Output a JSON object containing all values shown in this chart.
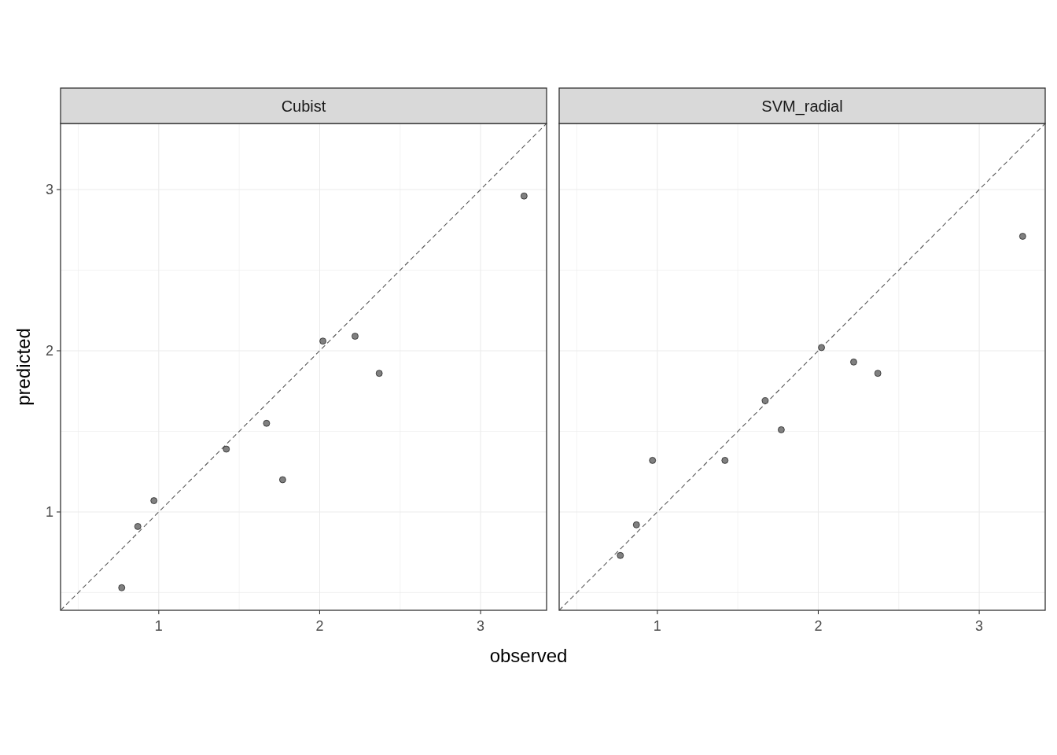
{
  "chart_data": [
    {
      "type": "scatter",
      "title": "Cubist",
      "xlabel": "observed",
      "ylabel": "predicted",
      "xlim": [
        0.39,
        3.41
      ],
      "ylim": [
        0.39,
        3.41
      ],
      "xticks": [
        {
          "value": 0.5,
          "label": null
        },
        1,
        {
          "value": 1.5,
          "label": null
        },
        2,
        {
          "value": 2.5,
          "label": null
        },
        3
      ],
      "yticks": [
        {
          "value": 0.5,
          "label": null
        },
        1,
        {
          "value": 1.5,
          "label": null
        },
        2,
        {
          "value": 2.5,
          "label": null
        },
        3
      ],
      "grid": true,
      "marker": "circle",
      "series": [
        {
          "type": "scatter",
          "color": "#808080",
          "x": [
            0.77,
            0.87,
            0.97,
            1.42,
            1.67,
            1.77,
            2.02,
            2.22,
            2.37,
            3.27
          ],
          "values": [
            0.53,
            0.91,
            1.07,
            1.39,
            1.55,
            1.2,
            2.06,
            2.09,
            1.86,
            2.96
          ]
        },
        {
          "type": "line",
          "color": "#595959",
          "line_style": "dashed",
          "marker": "none",
          "x": [
            0.39,
            3.41
          ],
          "values": [
            0.39,
            3.41
          ]
        }
      ]
    },
    {
      "type": "scatter",
      "title": "SVM_radial",
      "xlim": [
        0.39,
        3.41
      ],
      "ylim": [
        0.39,
        3.41
      ],
      "tick_labels": "x",
      "xticks": [
        {
          "value": 0.5,
          "label": null
        },
        1,
        {
          "value": 1.5,
          "label": null
        },
        2,
        {
          "value": 2.5,
          "label": null
        },
        3
      ],
      "yticks": [
        {
          "value": 0.5,
          "label": null
        },
        1,
        {
          "value": 1.5,
          "label": null
        },
        2,
        {
          "value": 2.5,
          "label": null
        },
        3
      ],
      "grid": true,
      "marker": "circle",
      "series": [
        {
          "type": "scatter",
          "color": "#808080",
          "x": [
            0.77,
            0.87,
            0.97,
            1.42,
            1.67,
            1.77,
            2.02,
            2.22,
            2.37,
            3.27
          ],
          "values": [
            0.73,
            0.92,
            1.32,
            1.32,
            1.69,
            1.51,
            2.02,
            1.93,
            1.86,
            2.71
          ]
        },
        {
          "type": "line",
          "color": "#595959",
          "line_style": "dashed",
          "marker": "none",
          "x": [
            0.39,
            3.41
          ],
          "values": [
            0.39,
            3.41
          ]
        }
      ]
    }
  ]
}
